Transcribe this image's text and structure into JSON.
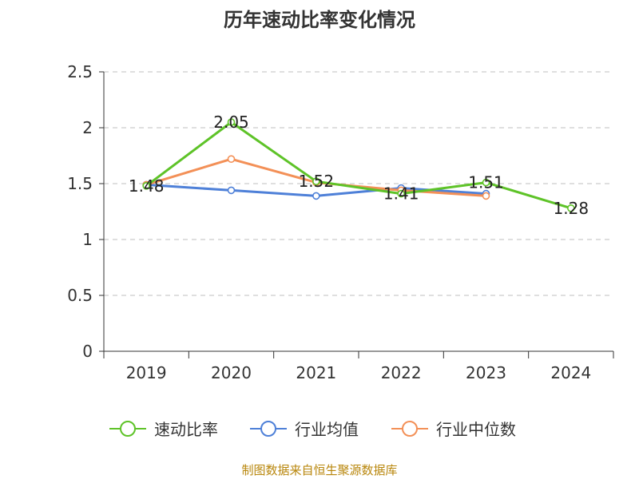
{
  "chart_data": {
    "type": "line",
    "title": "历年速动比率变化情况",
    "categories": [
      "2019",
      "2020",
      "2021",
      "2022",
      "2023",
      "2024"
    ],
    "ylim": [
      0,
      2.5
    ],
    "yticks": [
      "0",
      "0.5",
      "1",
      "1.5",
      "2",
      "2.5"
    ],
    "grid": true,
    "legend_position": "bottom",
    "series": [
      {
        "name": "速动比率",
        "color": "#5ec328",
        "values": [
          1.48,
          2.05,
          1.52,
          1.41,
          1.51,
          1.28
        ],
        "labels": [
          "1.48",
          "2.05",
          "1.52",
          "1.41",
          "1.51",
          "1.28"
        ]
      },
      {
        "name": "行业均值",
        "color": "#4e80d8",
        "values": [
          1.49,
          1.44,
          1.39,
          1.46,
          1.41,
          null
        ]
      },
      {
        "name": "行业中位数",
        "color": "#f39057",
        "values": [
          1.49,
          1.72,
          1.51,
          1.44,
          1.39,
          null
        ]
      }
    ]
  },
  "source_note": "制图数据来自恒生聚源数据库"
}
